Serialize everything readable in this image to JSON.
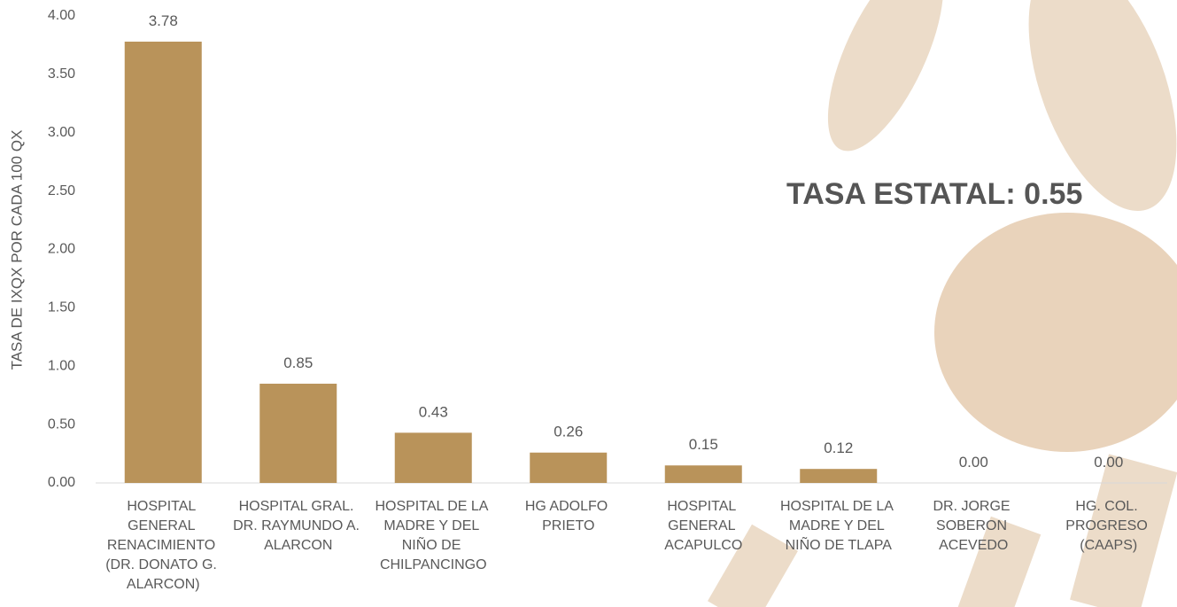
{
  "chart_data": {
    "type": "bar",
    "y_axis_label": "TASA DE IXQX POR CADA 100 QX",
    "annotation": "TASA ESTATAL: 0.55",
    "categories": [
      "HOSPITAL GENERAL RENACIMIENTO (DR. DONATO G. ALARCON)",
      "HOSPITAL GRAL. DR. RAYMUNDO A. ALARCON",
      "HOSPITAL DE LA MADRE Y DEL NIÑO DE CHILPANCINGO",
      "HG ADOLFO PRIETO",
      "HOSPITAL GENERAL ACAPULCO",
      "HOSPITAL DE LA MADRE Y DEL NIÑO DE TLAPA",
      "DR. JORGE SOBERON ACEVEDO",
      "HG. COL. PROGRESO (CAAPS)"
    ],
    "values": [
      3.78,
      0.85,
      0.43,
      0.26,
      0.15,
      0.12,
      0,
      0
    ],
    "value_labels": [
      "3.78",
      "0.85",
      "0.43",
      "0.26",
      "0.15",
      "0.12",
      "0.00",
      "0.00"
    ],
    "color": "#b9935a",
    "ylim": [
      0,
      4
    ],
    "yticks": [
      {
        "value": 0,
        "label": "0.00"
      },
      {
        "value": 0.5,
        "label": "0.50"
      },
      {
        "value": 1,
        "label": "1.00"
      },
      {
        "value": 1.5,
        "label": "1.50"
      },
      {
        "value": 2,
        "label": "2.00"
      },
      {
        "value": 2.5,
        "label": "2.50"
      },
      {
        "value": 3,
        "label": "3.00"
      },
      {
        "value": 3.5,
        "label": "3.50"
      },
      {
        "value": 4,
        "label": "4.00"
      }
    ],
    "grid": false
  }
}
